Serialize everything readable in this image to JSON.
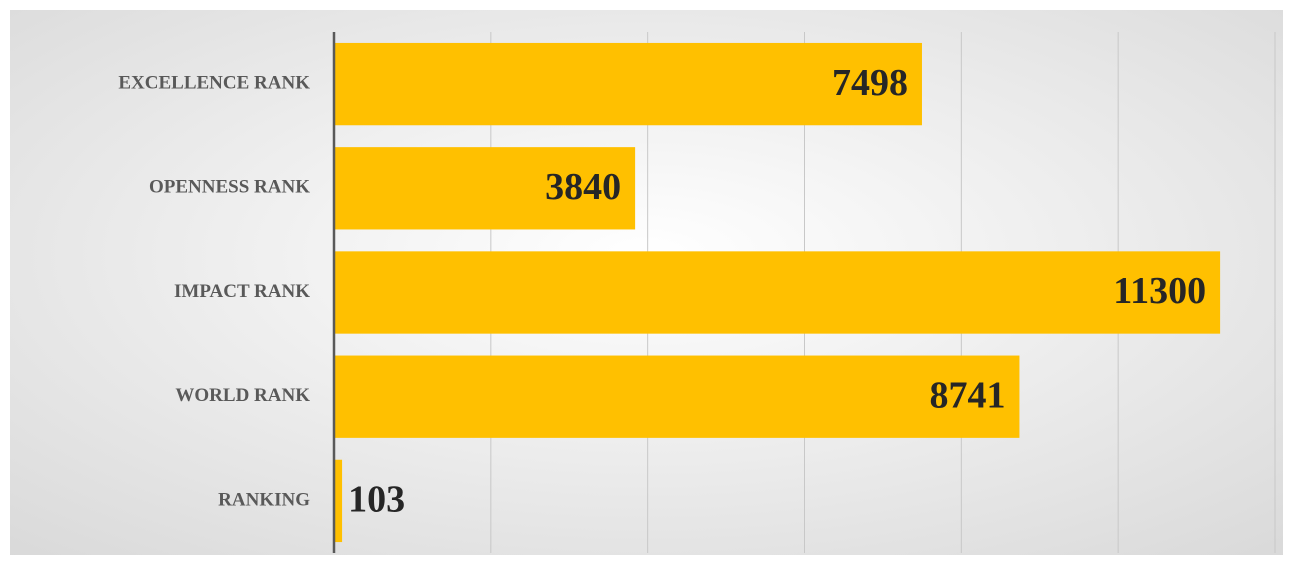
{
  "chart_data": {
    "type": "bar",
    "orientation": "horizontal",
    "categories": [
      "EXCELLENCE RANK",
      "OPENNESS RANK",
      "IMPACT RANK",
      "WORLD RANK",
      "RANKING"
    ],
    "values": [
      7498,
      3840,
      11300,
      8741,
      103
    ],
    "color": "#ffc000",
    "xlim": [
      0,
      12000
    ],
    "xticks": [
      0,
      2000,
      4000,
      6000,
      8000,
      10000,
      12000
    ],
    "grid": true
  }
}
